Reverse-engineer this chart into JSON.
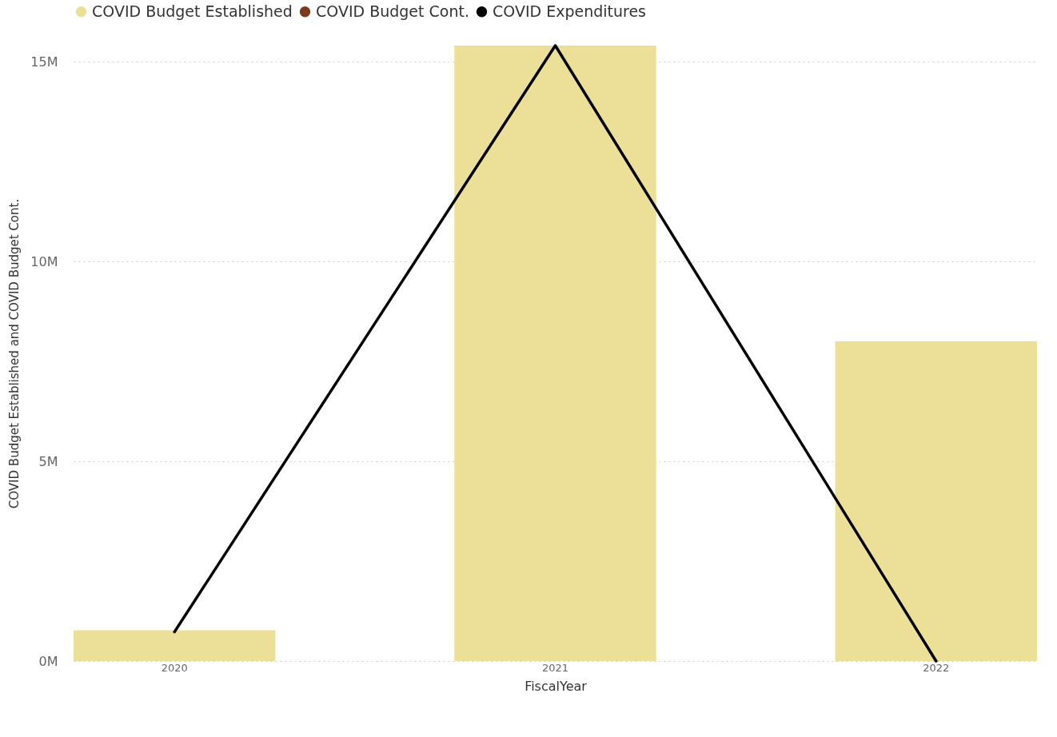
{
  "chart_data": {
    "type": "bar",
    "xlabel": "FiscalYear",
    "ylabel": "COVID Budget Established and COVID Budget Cont.",
    "categories": [
      "2020",
      "2021",
      "2022"
    ],
    "series": [
      {
        "name": "COVID Budget Established",
        "color": "#ecdf97",
        "values": [
          0.77,
          15.4,
          8.0
        ]
      },
      {
        "name": "COVID Budget Cont.",
        "color": "#7b3a1e",
        "values": [
          null,
          null,
          null
        ]
      },
      {
        "name": "COVID Expenditures",
        "type": "line",
        "color": "#000000",
        "values": [
          0.73,
          15.4,
          0
        ]
      }
    ],
    "ylim": [
      0,
      15.4
    ],
    "yticks": [
      {
        "value": 0,
        "label": "0M"
      },
      {
        "value": 5,
        "label": "5M"
      },
      {
        "value": 10,
        "label": "10M"
      },
      {
        "value": 15,
        "label": "15M"
      }
    ],
    "grid": "y",
    "legend": "top"
  }
}
